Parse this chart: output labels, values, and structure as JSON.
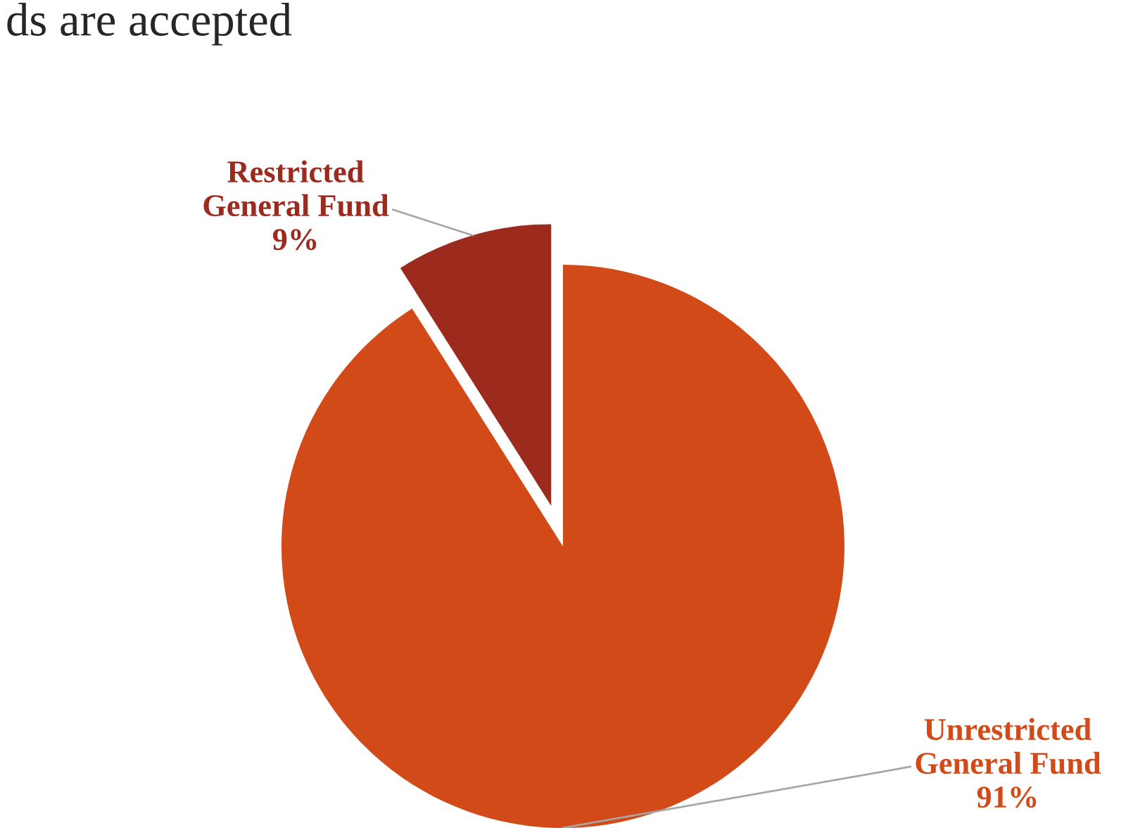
{
  "chart_data": {
    "type": "pie",
    "title": "ds are accepted",
    "categories": [
      "Unrestricted General Fund",
      "Restricted General Fund"
    ],
    "values": [
      91,
      9
    ],
    "value_labels": [
      "91%",
      "9%"
    ],
    "colors": [
      "#d24a18",
      "#9c2b1e"
    ]
  }
}
